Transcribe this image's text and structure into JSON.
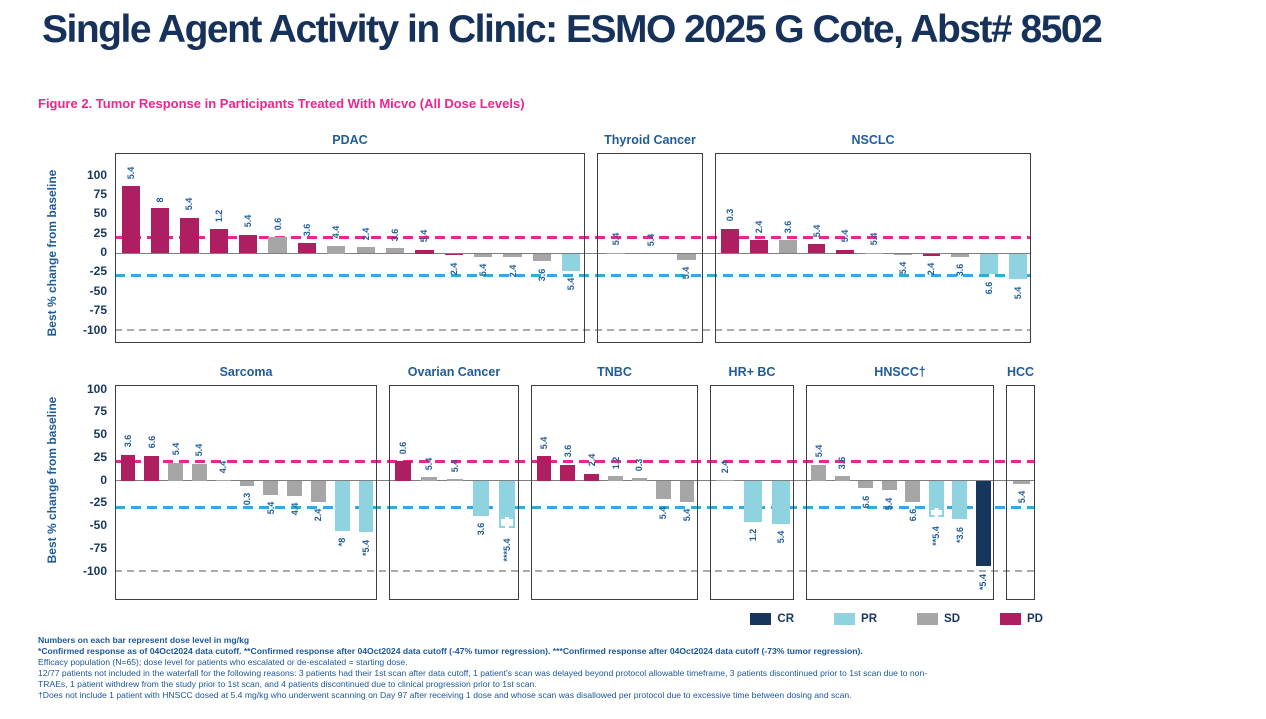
{
  "header": {
    "title": "Single Agent Activity in Clinic: ESMO 2025 G Cote, Abst# 8502"
  },
  "figure": {
    "caption": "Figure 2. Tumor Response in Participants Treated With Micvo (All Dose Levels)"
  },
  "colors": {
    "response": {
      "CR": "#17365D",
      "PR": "#8FD3E1",
      "SD": "#A6A6A6",
      "PD": "#AE1F62"
    },
    "pd_threshold_line": "#EC268F",
    "pr_threshold_line": "#35A8DF",
    "minus100_line": "#ABABAB",
    "zero_line": "#7F7F7F",
    "title_navy": "#16325B",
    "caption_pink": "#EC268F",
    "label_navy": "#1F5C99"
  },
  "chart_data": {
    "type": "bar",
    "subtype": "waterfall-tumor-response",
    "ylabel": "Best % change from baseline",
    "yticks": [
      100,
      75,
      50,
      25,
      0,
      -25,
      -50,
      -75,
      -100
    ],
    "ylim": [
      -100,
      100
    ],
    "bar_label_meaning": "dose level in mg/kg",
    "reference_lines": [
      {
        "y": 20,
        "style": "dashed",
        "color": "#EC268F",
        "meaning": "progressive disease threshold"
      },
      {
        "y": -30,
        "style": "dashed",
        "color": "#35A8DF",
        "meaning": "partial response threshold"
      },
      {
        "y": -100,
        "style": "dashed",
        "color": "#ABABAB",
        "meaning": "complete regression"
      }
    ],
    "rows": [
      {
        "panels": [
          {
            "title": "PDAC",
            "bars": [
              {
                "value": 87,
                "dose": "5.4",
                "response": "PD"
              },
              {
                "value": 59,
                "dose": "8",
                "response": "PD"
              },
              {
                "value": 46,
                "dose": "5.4",
                "response": "PD"
              },
              {
                "value": 31,
                "dose": "1.2",
                "response": "PD"
              },
              {
                "value": 24,
                "dose": "5.4",
                "response": "PD"
              },
              {
                "value": 21,
                "dose": "0.6",
                "response": "SD"
              },
              {
                "value": 13,
                "dose": "3.6",
                "response": "PD"
              },
              {
                "value": 10,
                "dose": "4.4",
                "response": "SD"
              },
              {
                "value": 8,
                "dose": "2.4",
                "response": "SD"
              },
              {
                "value": 7,
                "dose": "3.6",
                "response": "SD"
              },
              {
                "value": 5,
                "dose": "5.4",
                "response": "PD"
              },
              {
                "value": -2,
                "dose": "2.4",
                "response": "PD"
              },
              {
                "value": -4,
                "dose": "5.4",
                "response": "SD"
              },
              {
                "value": -5,
                "dose": "2.4",
                "response": "SD"
              },
              {
                "value": -10,
                "dose": "3.6",
                "response": "SD"
              },
              {
                "value": -22,
                "dose": "5.4",
                "response": "PR"
              }
            ]
          },
          {
            "title": "Thyroid Cancer",
            "bars": [
              {
                "value": 1,
                "dose": "5.4",
                "response": "SD"
              },
              {
                "value": 0,
                "dose": "5.4",
                "response": "SD"
              },
              {
                "value": -8,
                "dose": "5.4",
                "response": "SD"
              }
            ]
          },
          {
            "title": "NSCLC",
            "bars": [
              {
                "value": 32,
                "dose": "0.3",
                "response": "PD"
              },
              {
                "value": 17,
                "dose": "2.4",
                "response": "PD"
              },
              {
                "value": 17,
                "dose": "3.6",
                "response": "SD"
              },
              {
                "value": 12,
                "dose": "5.4",
                "response": "PD"
              },
              {
                "value": 5,
                "dose": "5.4",
                "response": "PD"
              },
              {
                "value": 1,
                "dose": "5.4",
                "response": "SD"
              },
              {
                "value": -1,
                "dose": "5.4",
                "response": "SD"
              },
              {
                "value": -3,
                "dose": "2.4",
                "response": "PD"
              },
              {
                "value": -4,
                "dose": "3.6",
                "response": "SD"
              },
              {
                "value": -27,
                "dose": "6.6",
                "response": "PR"
              },
              {
                "value": -33,
                "dose": "5.4",
                "response": "PR"
              }
            ]
          }
        ]
      },
      {
        "panels": [
          {
            "title": "Sarcoma",
            "bars": [
              {
                "value": 29,
                "dose": "3.6",
                "response": "PD"
              },
              {
                "value": 28,
                "dose": "6.6",
                "response": "PD"
              },
              {
                "value": 20,
                "dose": "5.4",
                "response": "SD"
              },
              {
                "value": 19,
                "dose": "5.4",
                "response": "SD"
              },
              {
                "value": 1,
                "dose": "4.4",
                "response": "SD"
              },
              {
                "value": -5,
                "dose": "0.3",
                "response": "SD"
              },
              {
                "value": -15,
                "dose": "5.4",
                "response": "SD"
              },
              {
                "value": -16,
                "dose": "4.4",
                "response": "SD"
              },
              {
                "value": -23,
                "dose": "2.4",
                "response": "SD"
              },
              {
                "value": -55,
                "dose": "*8",
                "response": "PR"
              },
              {
                "value": -56,
                "dose": "*5.4",
                "response": "PR"
              }
            ]
          },
          {
            "title": "Ovarian Cancer",
            "bars": [
              {
                "value": 22,
                "dose": "0.6",
                "response": "PD"
              },
              {
                "value": 4,
                "dose": "5.4",
                "response": "SD"
              },
              {
                "value": 2,
                "dose": "5.4",
                "response": "SD"
              },
              {
                "value": -38,
                "dose": "3.6",
                "response": "PR"
              },
              {
                "value": -52,
                "dose": "***5.4",
                "response": "PR",
                "box_from": -40
              }
            ]
          },
          {
            "title": "TNBC",
            "bars": [
              {
                "value": 27,
                "dose": "5.4",
                "response": "PD"
              },
              {
                "value": 18,
                "dose": "3.6",
                "response": "PD"
              },
              {
                "value": 8,
                "dose": "2.4",
                "response": "PD"
              },
              {
                "value": 5,
                "dose": "1.2",
                "response": "SD"
              },
              {
                "value": 3,
                "dose": "0.3",
                "response": "SD"
              },
              {
                "value": -20,
                "dose": "5.4",
                "response": "SD"
              },
              {
                "value": -23,
                "dose": "5.4",
                "response": "SD"
              }
            ]
          },
          {
            "title": "HR+ BC",
            "bars": [
              {
                "value": 1,
                "dose": "2.4",
                "response": "SD"
              },
              {
                "value": -45,
                "dose": "1.2",
                "response": "PR"
              },
              {
                "value": -47,
                "dose": "5.4",
                "response": "PR"
              }
            ]
          },
          {
            "title": "HNSCC†",
            "bars": [
              {
                "value": 18,
                "dose": "5.4",
                "response": "SD"
              },
              {
                "value": 5,
                "dose": "3.6",
                "response": "SD"
              },
              {
                "value": -8,
                "dose": "6.6",
                "response": "SD"
              },
              {
                "value": -10,
                "dose": "5.4",
                "response": "SD"
              },
              {
                "value": -23,
                "dose": "6.6",
                "response": "SD"
              },
              {
                "value": -40,
                "dose": "**5.4",
                "response": "PR",
                "box_from": -30
              },
              {
                "value": -42,
                "dose": "*3.6",
                "response": "PR"
              },
              {
                "value": -93,
                "dose": "*5.4",
                "response": "CR"
              }
            ]
          },
          {
            "title": "HCC",
            "bars": [
              {
                "value": -3,
                "dose": "5.4",
                "response": "SD"
              }
            ]
          }
        ]
      }
    ]
  },
  "legend": [
    {
      "label": "CR",
      "color": "#17365D"
    },
    {
      "label": "PR",
      "color": "#8FD3E1"
    },
    {
      "label": "SD",
      "color": "#A6A6A6"
    },
    {
      "label": "PD",
      "color": "#AE1F62"
    }
  ],
  "footnotes": [
    "Numbers on each bar represent dose level in mg/kg",
    "*Confirmed response as of 04Oct2024 data cutoff. **Confirmed response after 04Oct2024 data cutoff (-47% tumor regression). ***Confirmed response after 04Oct2024 data cutoff (-73% tumor regression).",
    "Efficacy population (N=65); dose level for patients who escalated or de-escalated = starting dose.",
    "12/77 patients not included in the waterfall for the following reasons: 3 patients had their 1st scan after data cutoff, 1 patient's scan was delayed beyond protocol allowable timeframe, 3 patients discontinued prior to 1st scan due to non-",
    "TRAEs, 1 patient withdrew from the study prior to 1st scan, and 4 patients discontinued due to clinical progression prior to 1st scan.",
    "†Does not include 1 patient with HNSCC dosed at 5.4 mg/kg who underwent scanning on Day 97 after receiving 1 dose and whose scan was disallowed per protocol due to excessive time between dosing and scan."
  ]
}
